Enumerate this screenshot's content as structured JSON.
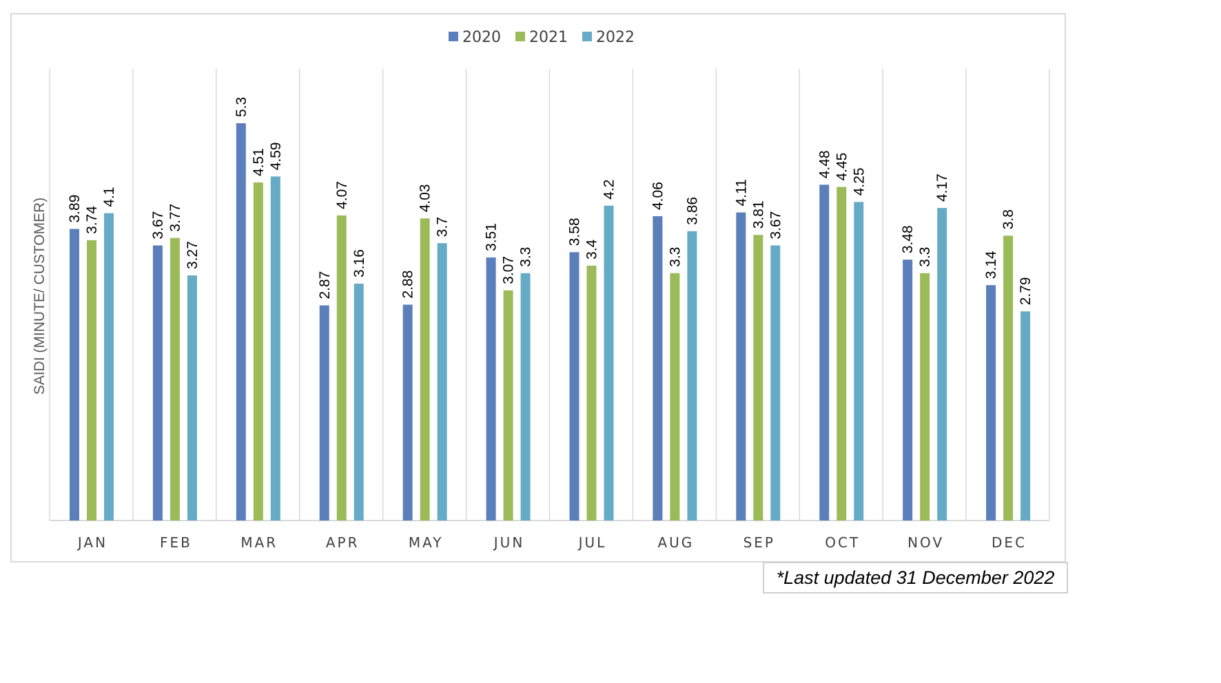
{
  "chart_data": {
    "type": "bar",
    "categories": [
      "JAN",
      "FEB",
      "MAR",
      "APR",
      "MAY",
      "JUN",
      "JUL",
      "AUG",
      "SEP",
      "OCT",
      "NOV",
      "DEC"
    ],
    "series": [
      {
        "name": "2020",
        "color": "#5b7fbb",
        "values": [
          3.89,
          3.67,
          5.3,
          2.87,
          2.88,
          3.51,
          3.58,
          4.06,
          4.11,
          4.48,
          3.48,
          3.14
        ]
      },
      {
        "name": "2021",
        "color": "#9bbb59",
        "values": [
          3.74,
          3.77,
          4.51,
          4.07,
          4.03,
          3.07,
          3.4,
          3.3,
          3.81,
          4.45,
          3.3,
          3.8
        ]
      },
      {
        "name": "2022",
        "color": "#66abc5",
        "values": [
          4.1,
          3.27,
          4.59,
          3.16,
          3.7,
          3.3,
          4.2,
          3.86,
          3.67,
          4.25,
          4.17,
          2.79
        ]
      }
    ],
    "ylabel": "SAIDI (MINUTE/ CUSTOMER)",
    "xlabel": "",
    "ylim": [
      0,
      6
    ],
    "grid": "vertical category separators",
    "legend_position": "top-center",
    "data_labels": "rotated vertical, above bars"
  },
  "footnote": "*Last updated 31 December 2022"
}
